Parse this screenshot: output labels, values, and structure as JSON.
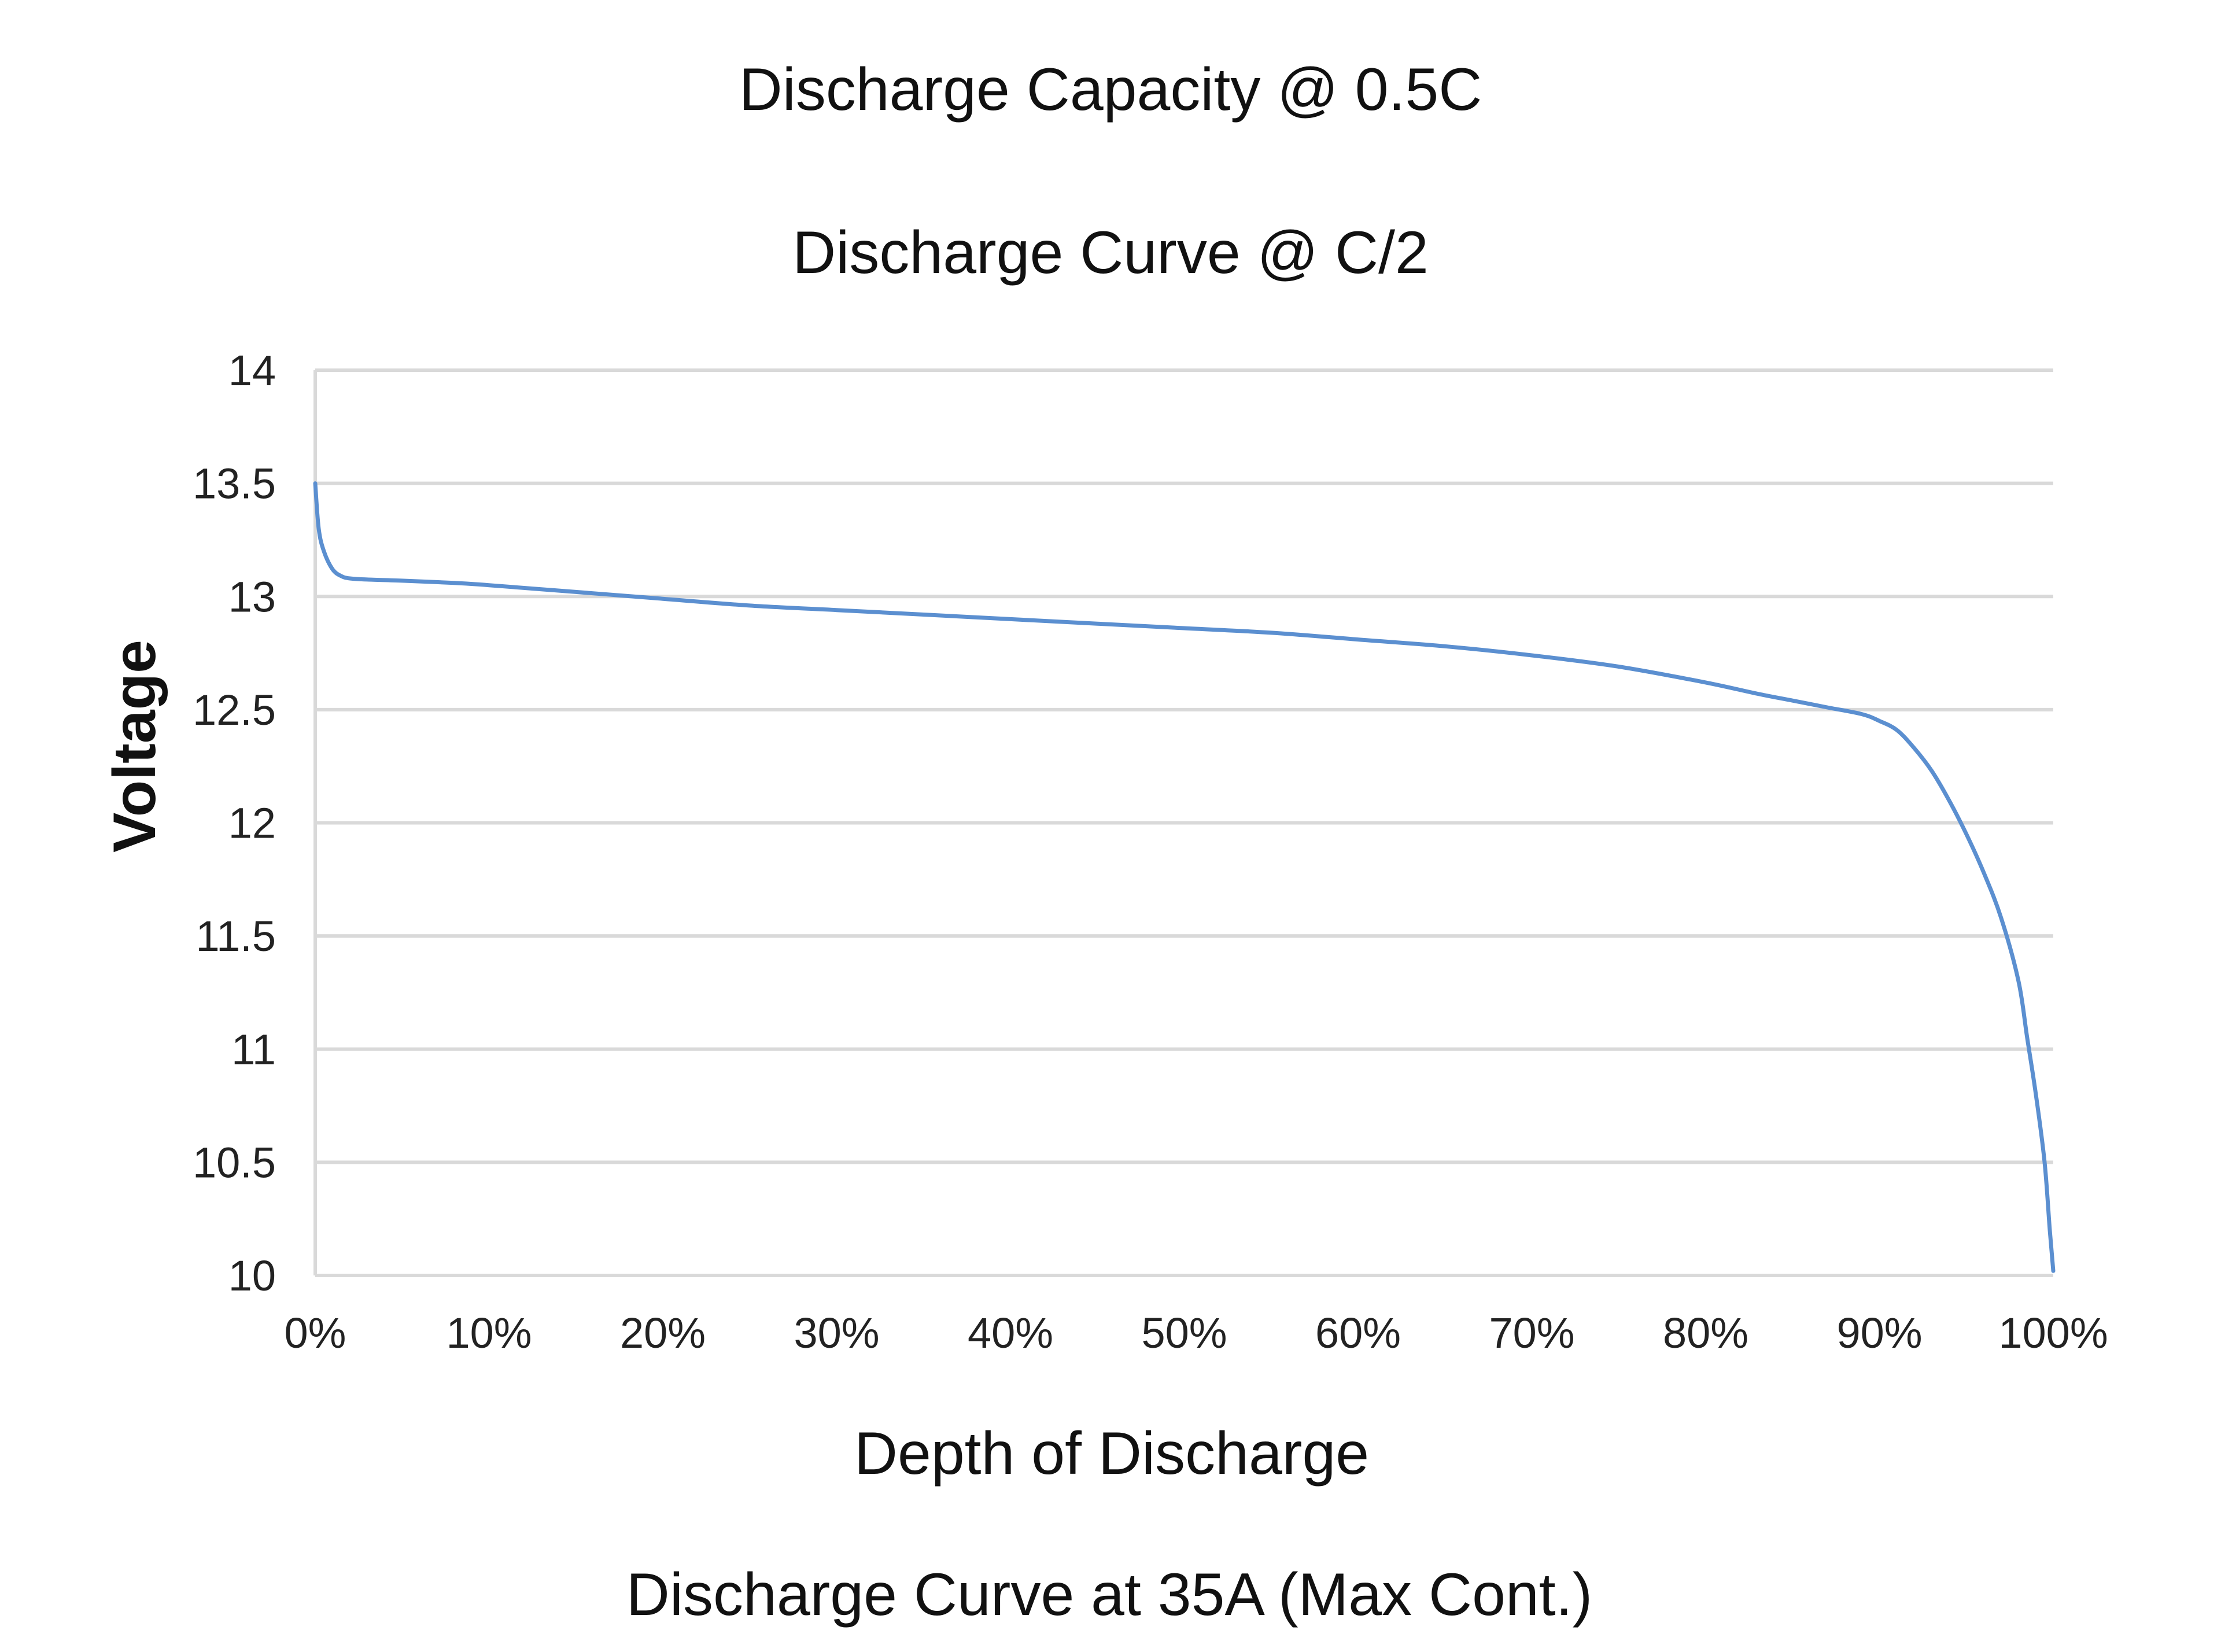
{
  "chart_data": {
    "type": "line",
    "title": "Discharge Capacity @ 0.5C",
    "subtitle": "Discharge Curve @ C/2",
    "caption": "Discharge Curve at 35A (Max Cont.)",
    "xlabel": "Depth of Discharge",
    "ylabel": "Voltage",
    "xlim": [
      0,
      100
    ],
    "ylim": [
      10,
      14
    ],
    "grid": true,
    "x_ticks": [
      "0%",
      "10%",
      "20%",
      "30%",
      "40%",
      "50%",
      "60%",
      "70%",
      "80%",
      "90%",
      "100%"
    ],
    "y_ticks": [
      "10",
      "10.5",
      "11",
      "11.5",
      "12",
      "12.5",
      "13",
      "13.5",
      "14"
    ],
    "series": [
      {
        "name": "Voltage",
        "color": "#5b8fd0",
        "x": [
          0,
          0.2,
          0.5,
          1,
          1.5,
          2,
          3,
          5,
          8,
          10,
          15,
          20,
          25,
          30,
          35,
          40,
          45,
          50,
          55,
          60,
          65,
          70,
          75,
          80,
          83,
          85,
          87,
          89,
          90,
          91,
          92,
          93,
          94,
          95,
          96,
          97,
          98,
          98.5,
          99,
          99.5,
          99.8,
          100
        ],
        "values": [
          13.5,
          13.3,
          13.2,
          13.12,
          13.09,
          13.08,
          13.075,
          13.07,
          13.06,
          13.05,
          13.02,
          12.99,
          12.96,
          12.94,
          12.92,
          12.9,
          12.88,
          12.86,
          12.84,
          12.81,
          12.78,
          12.74,
          12.69,
          12.62,
          12.57,
          12.54,
          12.51,
          12.48,
          12.45,
          12.41,
          12.33,
          12.23,
          12.1,
          11.95,
          11.78,
          11.58,
          11.3,
          11.05,
          10.8,
          10.5,
          10.2,
          10.02
        ]
      }
    ]
  }
}
